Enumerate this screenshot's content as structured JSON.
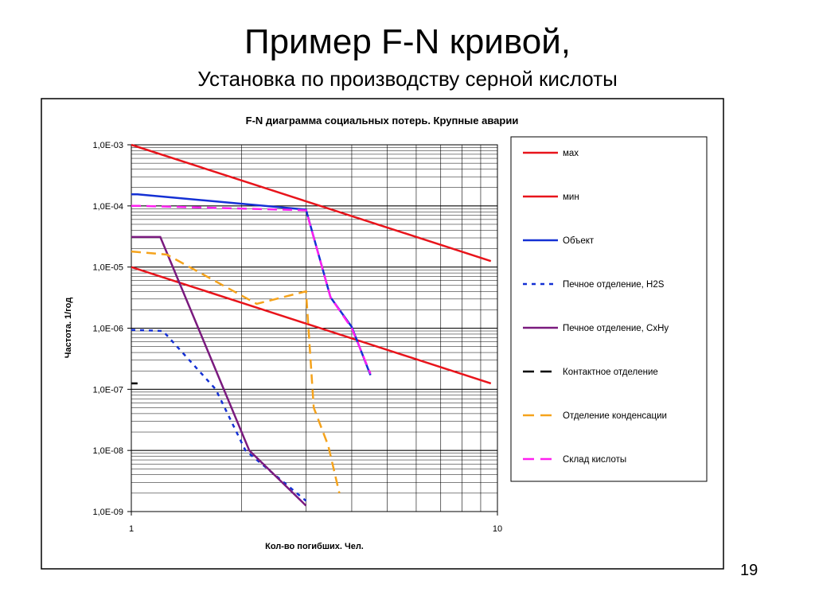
{
  "slide": {
    "title": "Пример F-N кривой,",
    "subtitle": "Установка по производству серной кислоты",
    "page_number": "19"
  },
  "chart_data": {
    "type": "line",
    "title": "F-N диаграмма социальных потерь. Крупные аварии",
    "xlabel": "Кол-во погибших. Чел.",
    "ylabel": "Частота. 1/год",
    "x_scale": "log",
    "y_scale": "log",
    "xlim": [
      1,
      10
    ],
    "ylim": [
      1e-09,
      0.001
    ],
    "x_tick_labels": [
      {
        "value": 1,
        "label": "1"
      },
      {
        "value": 10,
        "label": "10"
      }
    ],
    "y_tick_labels": [
      {
        "value": 0.001,
        "label": "1,0E-03"
      },
      {
        "value": 0.0001,
        "label": "1,0E-04"
      },
      {
        "value": 1e-05,
        "label": "1,0E-05"
      },
      {
        "value": 1e-06,
        "label": "1,0E-06"
      },
      {
        "value": 1e-07,
        "label": "1,0E-07"
      },
      {
        "value": 1e-08,
        "label": "1,0E-08"
      },
      {
        "value": 1e-09,
        "label": "1,0E-09"
      }
    ],
    "grid": true,
    "legend_position": "right",
    "series": [
      {
        "name": "мах",
        "color": "#e8141b",
        "dash": "solid",
        "points": [
          [
            1,
            0.001
          ],
          [
            9.6,
            1.25e-05
          ]
        ]
      },
      {
        "name": "мин",
        "color": "#e8141b",
        "dash": "solid",
        "points": [
          [
            1,
            1e-05
          ],
          [
            9.6,
            1.25e-07
          ]
        ]
      },
      {
        "name": "Объект",
        "color": "#1430d4",
        "dash": "solid",
        "points": [
          [
            1,
            0.000155
          ],
          [
            1.04,
            0.000155
          ],
          [
            3.0,
            8.7e-05
          ],
          [
            3.5,
            3.2e-06
          ],
          [
            4.0,
            1.05e-06
          ],
          [
            4.5,
            1.7e-07
          ]
        ]
      },
      {
        "name": "Печное отделение, H2S",
        "color": "#1430d4",
        "dash": "dotted",
        "points": [
          [
            1,
            9.4e-07
          ],
          [
            1.22,
            9e-07
          ],
          [
            1.7,
            1e-07
          ],
          [
            2.05,
            1e-08
          ],
          [
            3.0,
            1.5e-09
          ]
        ]
      },
      {
        "name": "Печное отделение, CхНу",
        "color": "#7a1a7e",
        "dash": "solid",
        "points": [
          [
            1,
            3.1e-05
          ],
          [
            1.2,
            3.1e-05
          ],
          [
            2.1,
            1e-08
          ],
          [
            3.0,
            1.25e-09
          ]
        ]
      },
      {
        "name": "Контактное отделение",
        "color": "#000000",
        "dash": "dashed",
        "points": [
          [
            1,
            1.25e-07
          ],
          [
            1.04,
            1.25e-07
          ]
        ]
      },
      {
        "name": "Отделение конденсации",
        "color": "#f5a31c",
        "dash": "dashed",
        "points": [
          [
            1,
            1.8e-05
          ],
          [
            1.25,
            1.6e-05
          ],
          [
            2.2,
            2.5e-06
          ],
          [
            3.0,
            4e-06
          ],
          [
            3.15,
            5e-08
          ],
          [
            3.45,
            1.2e-08
          ],
          [
            3.7,
            2e-09
          ]
        ]
      },
      {
        "name": "Склад кислоты",
        "color": "#ff20f0",
        "dash": "dashed",
        "points": [
          [
            1,
            0.0001
          ],
          [
            1.05,
            0.0001
          ],
          [
            3.0,
            8.5e-05
          ],
          [
            3.5,
            3.2e-06
          ],
          [
            4.0,
            1e-06
          ],
          [
            4.5,
            1.8e-07
          ]
        ]
      }
    ]
  }
}
